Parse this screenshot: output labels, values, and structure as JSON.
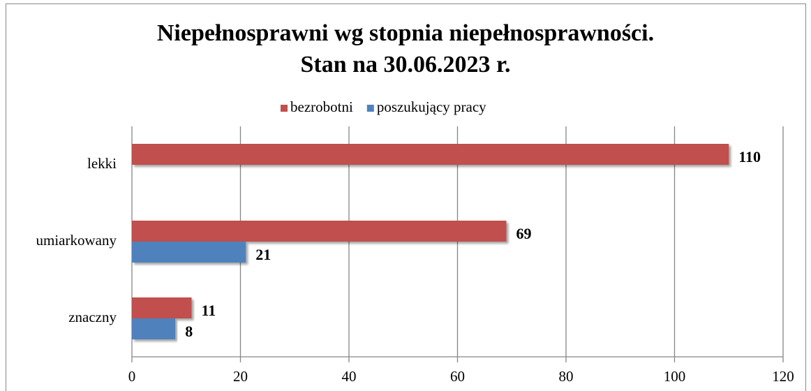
{
  "chart_data": {
    "type": "hbar",
    "title": [
      "Niepełnosprawni wg stopnia niepełnosprawności.",
      "Stan na 30.06.2023 r."
    ],
    "categories": [
      "lekki",
      "umiarkowany",
      "znaczny"
    ],
    "series": [
      {
        "name": "bezrobotni",
        "color": "#c0504d",
        "values": [
          110,
          69,
          11
        ]
      },
      {
        "name": "poszukujący pracy",
        "color": "#4f81bd",
        "values": [
          null,
          21,
          8
        ]
      }
    ],
    "xlim": [
      0,
      120
    ],
    "xticks": [
      0,
      20,
      40,
      60,
      80,
      100,
      120
    ],
    "grid": true,
    "legend": "top"
  }
}
